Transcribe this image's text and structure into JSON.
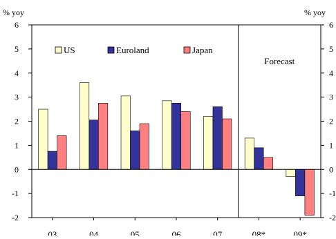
{
  "chart_data": {
    "type": "bar",
    "y_unit_left": "% yoy",
    "y_unit_right": "% yoy",
    "ylim": [
      -2,
      6
    ],
    "yticks": [
      -2,
      -1,
      0,
      1,
      2,
      3,
      4,
      5,
      6
    ],
    "grid": false,
    "legend_position": "top-left",
    "categories": [
      "03",
      "04",
      "05",
      "06",
      "07",
      "08*",
      "09*"
    ],
    "series": [
      {
        "name": "US",
        "color": "#ffffcc",
        "values": [
          2.5,
          3.6,
          3.05,
          2.85,
          2.2,
          1.3,
          -0.3
        ]
      },
      {
        "name": "Euroland",
        "color": "#333399",
        "values": [
          0.75,
          2.05,
          1.6,
          2.75,
          2.6,
          0.9,
          -1.1
        ]
      },
      {
        "name": "Japan",
        "color": "#ff8080",
        "values": [
          1.4,
          2.75,
          1.9,
          2.4,
          2.1,
          0.5,
          -1.9
        ]
      }
    ],
    "annotation": "Forecast",
    "forecast_start_index": 5
  }
}
